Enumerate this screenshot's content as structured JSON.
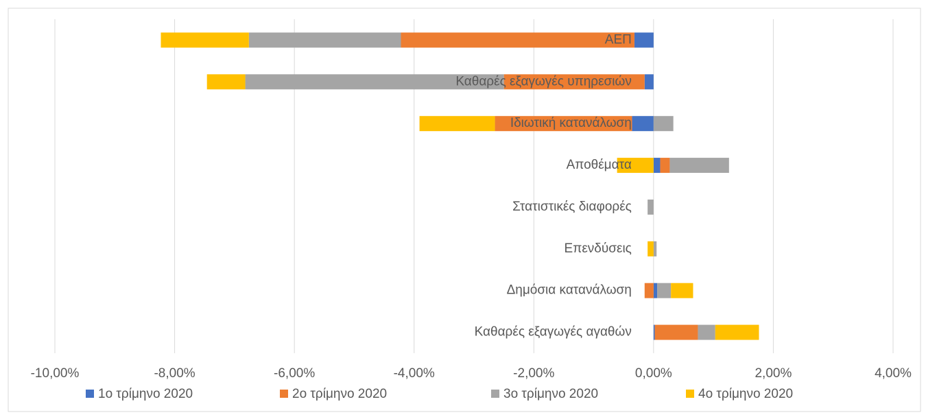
{
  "chart_data": {
    "type": "bar",
    "orientation": "horizontal",
    "stacked": true,
    "categories": [
      "ΑΕΠ",
      "Καθαρές εξαγωγές υπηρεσιών",
      "Ιδιωτική κατανάλωση",
      "Αποθέματα",
      "Στατιστικές διαφορές",
      "Επενδύσεις",
      "Δημόσια κατανάλωση",
      "Καθαρές εξαγωγές αγαθών"
    ],
    "series": [
      {
        "name": "1ο τρίμηνο 2020",
        "color": "#4472c4",
        "values": [
          -0.32,
          -0.15,
          -0.36,
          0.11,
          0,
          0,
          0.06,
          0.02
        ]
      },
      {
        "name": "2ο τρίμηνο 2020",
        "color": "#ed7d31",
        "values": [
          -3.9,
          -2.35,
          -2.29,
          0.16,
          0,
          0,
          -0.15,
          0.72
        ]
      },
      {
        "name": "3ο τρίμηνο 2020",
        "color": "#a5a5a5",
        "values": [
          -2.54,
          -4.32,
          0.33,
          0.99,
          -0.1,
          0.05,
          0.23,
          0.29
        ]
      },
      {
        "name": "4ο τρίμηνο 2020",
        "color": "#ffc000",
        "values": [
          -1.47,
          -0.64,
          -1.26,
          -0.61,
          0,
          -0.1,
          0.37,
          0.73
        ]
      }
    ],
    "xlim": [
      -10,
      4
    ],
    "xticks": [
      {
        "value": -10,
        "label": "-10,00%"
      },
      {
        "value": -8,
        "label": "-8,00%"
      },
      {
        "value": -6,
        "label": "-6,00%"
      },
      {
        "value": -4,
        "label": "-4,00%"
      },
      {
        "value": -2,
        "label": "-2,00%"
      },
      {
        "value": 0,
        "label": "0,00%"
      },
      {
        "value": 2,
        "label": "2,00%"
      },
      {
        "value": 4,
        "label": "4,00%"
      }
    ],
    "grid": true,
    "legend": "bottom"
  }
}
